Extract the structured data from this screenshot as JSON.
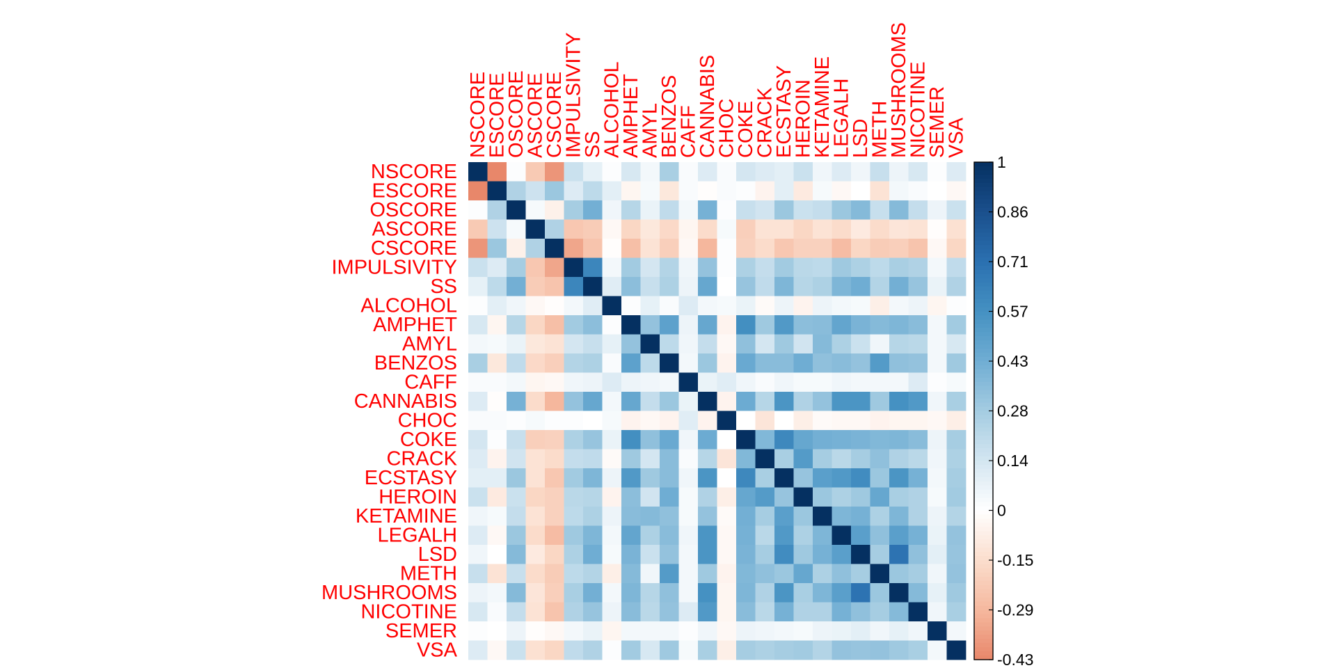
{
  "chart_data": {
    "type": "heatmap",
    "variables": [
      "NSCORE",
      "ESCORE",
      "OSCORE",
      "ASCORE",
      "CSCORE",
      "IMPULSIVITY",
      "SS",
      "ALCOHOL",
      "AMPHET",
      "AMYL",
      "BENZOS",
      "CAFF",
      "CANNABIS",
      "CHOC",
      "COKE",
      "CRACK",
      "ECSTASY",
      "HEROIN",
      "KETAMINE",
      "LEGALH",
      "LSD",
      "METH",
      "MUSHROOMS",
      "NICOTINE",
      "SEMER",
      "VSA"
    ],
    "matrix": [
      [
        1,
        -0.43,
        0.01,
        -0.22,
        -0.39,
        0.17,
        0.08,
        0.01,
        0.13,
        0.04,
        0.27,
        0.02,
        0.11,
        0.02,
        0.14,
        0.11,
        0.09,
        0.17,
        0.05,
        0.11,
        0.05,
        0.18,
        0.06,
        0.13,
        0.01,
        0.11
      ],
      [
        -0.43,
        1,
        0.25,
        0.16,
        0.31,
        0.11,
        0.21,
        0.09,
        -0.04,
        0.03,
        -0.1,
        0.02,
        -0.01,
        0.02,
        0.01,
        -0.05,
        0.09,
        -0.09,
        0.03,
        -0.03,
        0.0,
        -0.12,
        0.04,
        0.02,
        0.0,
        -0.03
      ],
      [
        0.01,
        0.25,
        1,
        0.03,
        -0.06,
        0.28,
        0.42,
        0.05,
        0.23,
        0.07,
        0.2,
        0.04,
        0.41,
        0.01,
        0.18,
        0.15,
        0.31,
        0.17,
        0.19,
        0.31,
        0.37,
        0.18,
        0.37,
        0.19,
        0.06,
        0.17
      ],
      [
        -0.22,
        0.16,
        0.03,
        1,
        0.25,
        -0.23,
        -0.21,
        -0.03,
        -0.17,
        -0.1,
        -0.16,
        -0.04,
        -0.15,
        0.03,
        -0.2,
        -0.12,
        -0.12,
        -0.17,
        -0.12,
        -0.15,
        -0.09,
        -0.15,
        -0.11,
        -0.12,
        -0.01,
        -0.13
      ],
      [
        -0.39,
        0.31,
        -0.06,
        0.25,
        1,
        -0.34,
        -0.24,
        -0.01,
        -0.26,
        -0.12,
        -0.2,
        -0.03,
        -0.29,
        0.01,
        -0.19,
        -0.15,
        -0.23,
        -0.19,
        -0.19,
        -0.27,
        -0.17,
        -0.21,
        -0.2,
        -0.24,
        -0.03,
        -0.17
      ],
      [
        0.17,
        0.11,
        0.28,
        -0.23,
        -0.34,
        1,
        0.62,
        0.04,
        0.29,
        0.14,
        0.24,
        0.05,
        0.33,
        0.01,
        0.26,
        0.19,
        0.29,
        0.22,
        0.21,
        0.3,
        0.26,
        0.21,
        0.27,
        0.25,
        0.04,
        0.2
      ],
      [
        0.08,
        0.21,
        0.42,
        -0.21,
        -0.24,
        0.62,
        1,
        0.1,
        0.35,
        0.18,
        0.26,
        0.06,
        0.46,
        0.0,
        0.32,
        0.2,
        0.39,
        0.23,
        0.26,
        0.39,
        0.43,
        0.24,
        0.42,
        0.32,
        0.07,
        0.25
      ],
      [
        0.01,
        0.09,
        0.05,
        -0.03,
        -0.01,
        0.04,
        0.1,
        1,
        0.01,
        0.08,
        0.02,
        0.11,
        0.04,
        0.03,
        0.07,
        -0.02,
        0.06,
        -0.05,
        0.06,
        0.04,
        0.03,
        -0.07,
        0.04,
        0.06,
        -0.04,
        0.01
      ],
      [
        0.13,
        -0.04,
        0.23,
        -0.17,
        -0.26,
        0.29,
        0.35,
        0.01,
        1,
        0.33,
        0.49,
        0.06,
        0.46,
        -0.05,
        0.58,
        0.3,
        0.53,
        0.35,
        0.36,
        0.47,
        0.4,
        0.37,
        0.39,
        0.36,
        0.04,
        0.29
      ],
      [
        0.04,
        0.03,
        0.07,
        -0.1,
        -0.12,
        0.14,
        0.18,
        0.08,
        0.33,
        1,
        0.21,
        0.05,
        0.19,
        -0.03,
        0.34,
        0.14,
        0.3,
        0.15,
        0.37,
        0.26,
        0.17,
        0.05,
        0.23,
        0.22,
        0.04,
        0.13
      ],
      [
        0.27,
        -0.1,
        0.2,
        -0.16,
        -0.2,
        0.24,
        0.26,
        0.02,
        0.49,
        0.21,
        1,
        0.04,
        0.31,
        -0.05,
        0.45,
        0.36,
        0.36,
        0.43,
        0.34,
        0.36,
        0.33,
        0.52,
        0.34,
        0.33,
        0.04,
        0.3
      ],
      [
        0.02,
        0.02,
        0.04,
        -0.04,
        -0.03,
        0.05,
        0.06,
        0.11,
        0.06,
        0.05,
        0.04,
        1,
        0.07,
        0.1,
        0.05,
        0.02,
        0.05,
        0.03,
        0.03,
        0.05,
        0.04,
        0.04,
        0.04,
        0.11,
        0.01,
        0.03
      ],
      [
        0.11,
        -0.01,
        0.41,
        -0.15,
        -0.29,
        0.33,
        0.46,
        0.04,
        0.46,
        0.19,
        0.31,
        0.07,
        1,
        -0.05,
        0.44,
        0.23,
        0.55,
        0.25,
        0.33,
        0.55,
        0.55,
        0.3,
        0.57,
        0.53,
        0.05,
        0.27
      ],
      [
        0.02,
        0.02,
        0.01,
        0.03,
        0.01,
        0.01,
        0.0,
        0.03,
        -0.05,
        -0.03,
        -0.05,
        0.1,
        -0.05,
        1,
        0.0,
        -0.11,
        0.0,
        -0.07,
        -0.02,
        -0.03,
        -0.03,
        -0.05,
        -0.04,
        -0.04,
        -0.03,
        -0.07
      ],
      [
        0.14,
        0.01,
        0.18,
        -0.2,
        -0.19,
        0.26,
        0.32,
        0.07,
        0.58,
        0.34,
        0.45,
        0.05,
        0.44,
        0.0,
        1,
        0.38,
        0.61,
        0.46,
        0.42,
        0.41,
        0.4,
        0.38,
        0.39,
        0.36,
        0.06,
        0.28
      ],
      [
        0.11,
        -0.05,
        0.15,
        -0.12,
        -0.15,
        0.19,
        0.2,
        -0.02,
        0.3,
        0.14,
        0.36,
        0.02,
        0.23,
        -0.11,
        0.38,
        1,
        0.27,
        0.52,
        0.28,
        0.22,
        0.28,
        0.34,
        0.25,
        0.22,
        0.05,
        0.26
      ],
      [
        0.09,
        0.09,
        0.31,
        -0.12,
        -0.23,
        0.29,
        0.39,
        0.06,
        0.53,
        0.3,
        0.36,
        0.05,
        0.55,
        0.0,
        0.61,
        0.27,
        1,
        0.32,
        0.5,
        0.53,
        0.59,
        0.31,
        0.55,
        0.41,
        0.04,
        0.28
      ],
      [
        0.17,
        -0.09,
        0.17,
        -0.17,
        -0.19,
        0.22,
        0.23,
        -0.05,
        0.35,
        0.15,
        0.43,
        0.03,
        0.25,
        -0.07,
        0.46,
        0.52,
        0.32,
        1,
        0.31,
        0.26,
        0.3,
        0.46,
        0.27,
        0.25,
        0.03,
        0.29
      ],
      [
        0.05,
        0.03,
        0.19,
        -0.12,
        -0.19,
        0.21,
        0.26,
        0.06,
        0.36,
        0.37,
        0.34,
        0.03,
        0.33,
        -0.02,
        0.42,
        0.28,
        0.5,
        0.31,
        1,
        0.39,
        0.41,
        0.26,
        0.39,
        0.25,
        0.06,
        0.24
      ],
      [
        0.11,
        -0.03,
        0.31,
        -0.15,
        -0.27,
        0.3,
        0.39,
        0.04,
        0.47,
        0.26,
        0.36,
        0.05,
        0.55,
        -0.03,
        0.41,
        0.22,
        0.53,
        0.26,
        0.39,
        1,
        0.5,
        0.34,
        0.5,
        0.41,
        0.07,
        0.33
      ],
      [
        0.05,
        0.0,
        0.37,
        -0.09,
        -0.17,
        0.26,
        0.43,
        0.03,
        0.4,
        0.17,
        0.33,
        0.04,
        0.55,
        -0.03,
        0.4,
        0.28,
        0.59,
        0.3,
        0.41,
        0.5,
        1,
        0.28,
        0.7,
        0.34,
        0.09,
        0.32
      ],
      [
        0.18,
        -0.12,
        0.18,
        -0.15,
        -0.21,
        0.21,
        0.24,
        -0.07,
        0.37,
        0.05,
        0.52,
        0.04,
        0.3,
        -0.05,
        0.38,
        0.34,
        0.31,
        0.46,
        0.26,
        0.34,
        0.28,
        1,
        0.31,
        0.28,
        0.05,
        0.33
      ],
      [
        0.06,
        0.04,
        0.37,
        -0.11,
        -0.2,
        0.27,
        0.42,
        0.04,
        0.39,
        0.23,
        0.34,
        0.04,
        0.57,
        -0.04,
        0.39,
        0.25,
        0.55,
        0.27,
        0.39,
        0.5,
        0.7,
        0.31,
        1,
        0.37,
        0.08,
        0.3
      ],
      [
        0.13,
        0.02,
        0.19,
        -0.12,
        -0.24,
        0.25,
        0.32,
        0.06,
        0.36,
        0.22,
        0.33,
        0.11,
        0.53,
        -0.04,
        0.36,
        0.22,
        0.41,
        0.25,
        0.25,
        0.41,
        0.34,
        0.28,
        0.37,
        1,
        0.05,
        0.27
      ],
      [
        0.01,
        0.0,
        0.06,
        -0.01,
        -0.03,
        0.04,
        0.07,
        -0.04,
        0.04,
        0.04,
        0.04,
        0.01,
        0.05,
        -0.03,
        0.06,
        0.05,
        0.04,
        0.03,
        0.06,
        0.07,
        0.09,
        0.05,
        0.08,
        0.05,
        1,
        0.04
      ],
      [
        0.11,
        -0.03,
        0.17,
        -0.13,
        -0.17,
        0.2,
        0.25,
        0.01,
        0.29,
        0.13,
        0.3,
        0.03,
        0.27,
        -0.07,
        0.28,
        0.26,
        0.28,
        0.29,
        0.24,
        0.33,
        0.32,
        0.33,
        0.3,
        0.27,
        0.04,
        1
      ]
    ],
    "colorbar": {
      "ticks": [
        "1",
        "0.86",
        "0.71",
        "0.57",
        "0.43",
        "0.28",
        "0.14",
        "0",
        "-0.15",
        "-0.29",
        "-0.43"
      ],
      "range": [
        -0.43,
        1
      ]
    },
    "colors": {
      "label": "#ff0000",
      "negative": "#e8876a",
      "zero": "#ffffff",
      "positive": "#053061"
    }
  }
}
